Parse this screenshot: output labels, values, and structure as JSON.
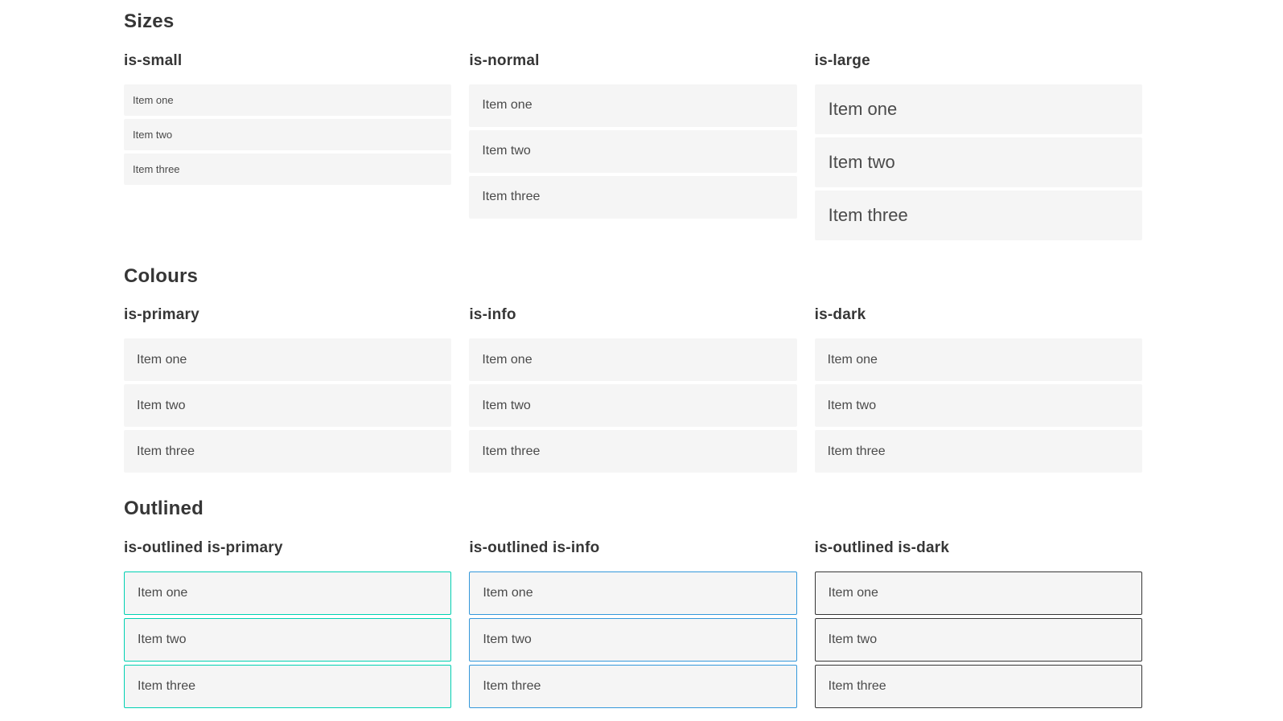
{
  "colors": {
    "primary": "#00d1b2",
    "info": "#3498db",
    "dark": "#363636",
    "item_background": "#f5f5f5",
    "item_text": "#4a4a4a",
    "heading_text": "#363636",
    "page_background": "#ffffff"
  },
  "sections": [
    {
      "title": "Sizes",
      "groups": [
        {
          "label": "is-small",
          "variant": "size-small",
          "items": [
            "Item one",
            "Item two",
            "Item three"
          ]
        },
        {
          "label": "is-normal",
          "variant": "size-normal",
          "items": [
            "Item one",
            "Item two",
            "Item three"
          ]
        },
        {
          "label": "is-large",
          "variant": "size-large",
          "items": [
            "Item one",
            "Item two",
            "Item three"
          ]
        }
      ]
    },
    {
      "title": "Colours",
      "groups": [
        {
          "label": "is-primary",
          "variant": "color-primary",
          "items": [
            "Item one",
            "Item two",
            "Item three"
          ]
        },
        {
          "label": "is-info",
          "variant": "color-info",
          "items": [
            "Item one",
            "Item two",
            "Item three"
          ]
        },
        {
          "label": "is-dark",
          "variant": "color-dark",
          "items": [
            "Item one",
            "Item two",
            "Item three"
          ]
        }
      ]
    },
    {
      "title": "Outlined",
      "groups": [
        {
          "label": "is-outlined is-primary",
          "variant": "outlined-primary",
          "items": [
            "Item one",
            "Item two",
            "Item three"
          ]
        },
        {
          "label": "is-outlined is-info",
          "variant": "outlined-info",
          "items": [
            "Item one",
            "Item two",
            "Item three"
          ]
        },
        {
          "label": "is-outlined is-dark",
          "variant": "outlined-dark",
          "items": [
            "Item one",
            "Item two",
            "Item three"
          ]
        }
      ]
    }
  ]
}
